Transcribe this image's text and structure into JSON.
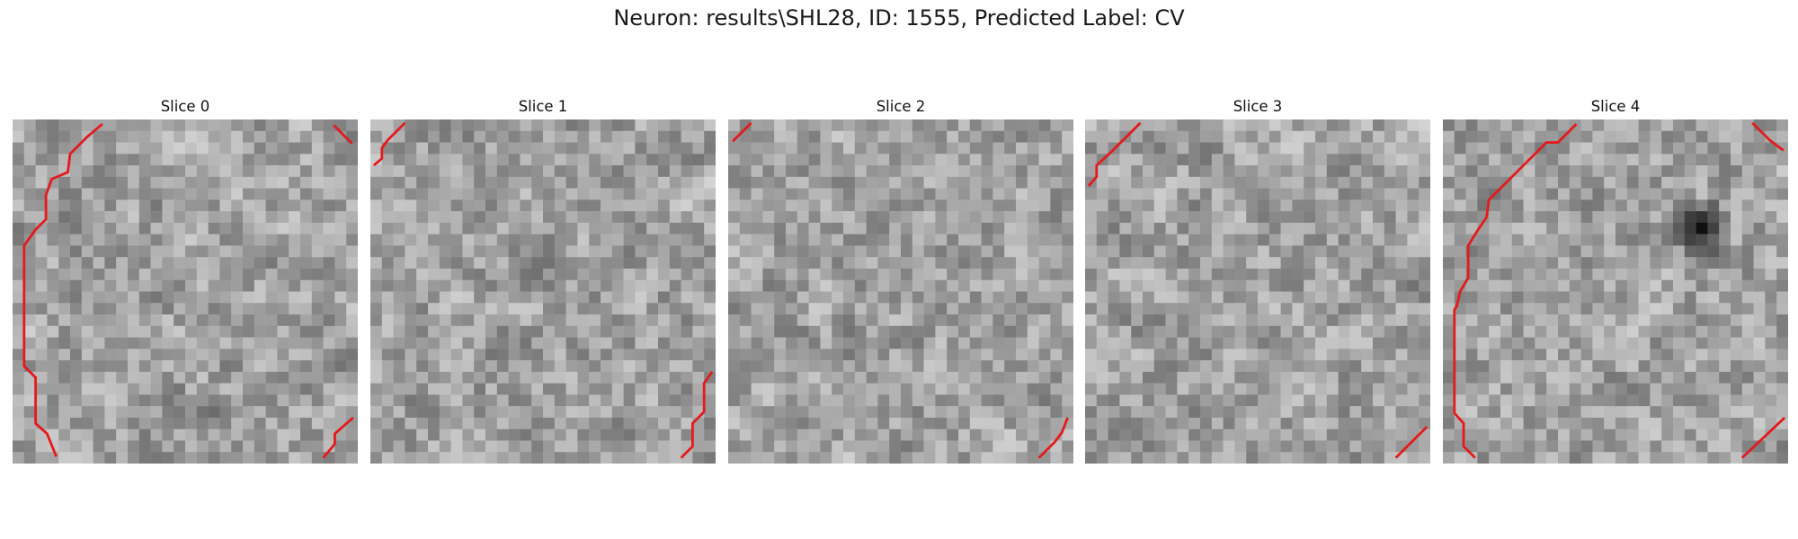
{
  "figure": {
    "title": "Neuron: results\\SHL28, ID: 1555, Predicted Label: CV"
  },
  "panels": [
    {
      "title": "Slice 0",
      "dark_spot": null
    },
    {
      "title": "Slice 1",
      "dark_spot": null
    },
    {
      "title": "Slice 2",
      "dark_spot": null
    },
    {
      "title": "Slice 3",
      "dark_spot": null
    },
    {
      "title": "Slice 4",
      "dark_spot": {
        "cx": 22,
        "cy": 9,
        "r": 3
      }
    }
  ],
  "style": {
    "contour_color": "#e41a1c",
    "colormap": "gray"
  }
}
